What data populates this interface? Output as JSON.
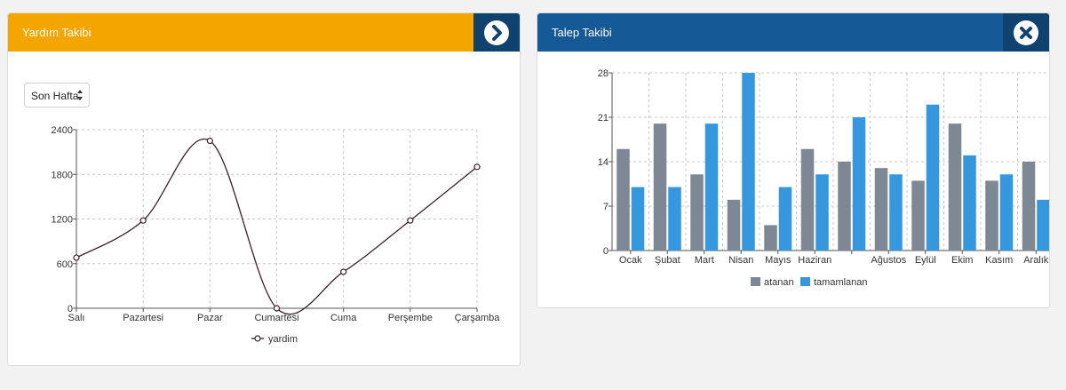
{
  "colors": {
    "left_header": "#f5a500",
    "right_header": "#155996",
    "header_button": "#10426f",
    "line_series": "#3d1f27",
    "bar_atanan": "#7d8894",
    "bar_tamamlanan": "#3597de",
    "grid": "#c8c8c8"
  },
  "left_panel": {
    "title": "Yardım Takibi",
    "header_icon": "chevron-right-circle-icon",
    "period_select": {
      "selected": "Son Hafta"
    }
  },
  "right_panel": {
    "title": "Talep Takibi",
    "header_icon": "close-circle-icon"
  },
  "chart_data": [
    {
      "type": "line",
      "categories": [
        "Salı",
        "Pazartesi",
        "Pazar",
        "Cumartesi",
        "Cuma",
        "Perşembe",
        "Çarşamba"
      ],
      "series": [
        {
          "name": "yardim",
          "values": [
            680,
            1180,
            2250,
            0,
            490,
            1180,
            1900
          ]
        }
      ],
      "ylim": [
        0,
        2400
      ],
      "yticks": [
        0,
        600,
        1200,
        1800,
        2400
      ],
      "grid": true,
      "smooth": true,
      "legend": "bottom"
    },
    {
      "type": "bar",
      "categories": [
        "Ocak",
        "Şubat",
        "Mart",
        "Nisan",
        "Mayıs",
        "Haziran",
        "",
        "Ağustos",
        "Eylül",
        "Ekim",
        "Kasım",
        "Aralık"
      ],
      "series": [
        {
          "name": "atanan",
          "values": [
            16,
            20,
            12,
            8,
            4,
            16,
            14,
            13,
            11,
            20,
            11,
            14
          ]
        },
        {
          "name": "tamamlanan",
          "values": [
            10,
            10,
            20,
            28,
            10,
            12,
            21,
            12,
            23,
            15,
            12,
            8
          ]
        }
      ],
      "ylim": [
        0,
        28
      ],
      "yticks": [
        0,
        7,
        14,
        21,
        28
      ],
      "grid": true,
      "legend": "bottom"
    }
  ]
}
